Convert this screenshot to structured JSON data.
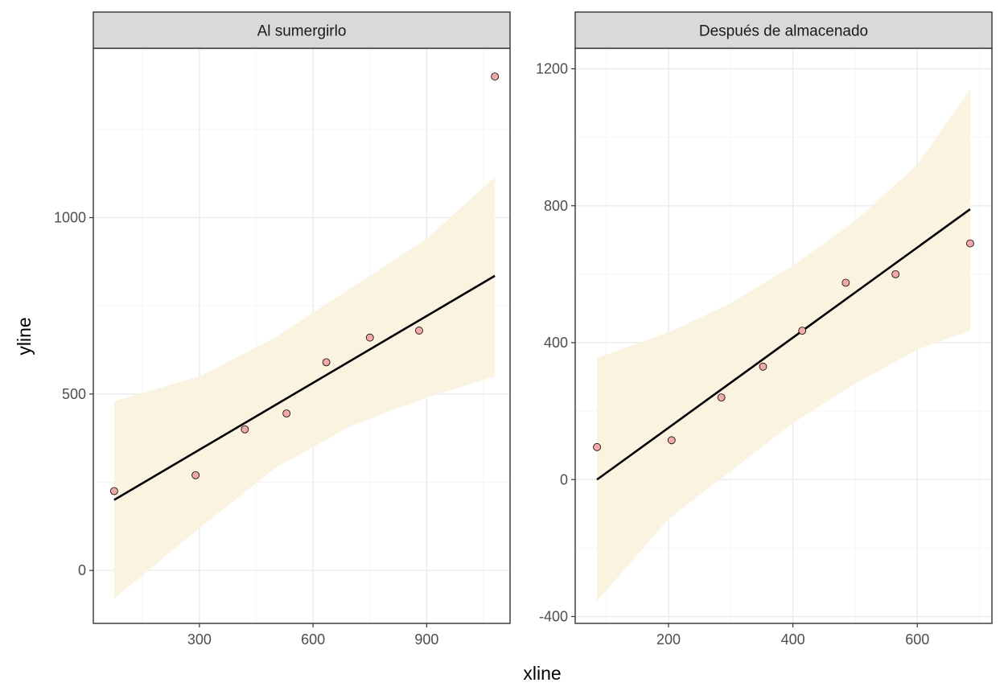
{
  "figure": {
    "xlabel": "xline",
    "ylabel": "yline"
  },
  "colors": {
    "point_fill": "#f4a7a7",
    "point_stroke": "#000000",
    "ribbon": "#faf3df",
    "line": "#000000",
    "strip_bg": "#d9d9d9",
    "grid_major": "#ebebeb",
    "grid_minor": "#f5f5f5",
    "panel_border": "#333333"
  },
  "chart_data": [
    {
      "type": "scatter",
      "title": "Al sumergirlo",
      "xlim": [
        20,
        1120
      ],
      "ylim": [
        -150,
        1480
      ],
      "x_ticks": [
        300,
        600,
        900
      ],
      "y_ticks": [
        0,
        500,
        1000
      ],
      "grid": true,
      "legend": "none",
      "points": [
        {
          "x": 75,
          "y": 225
        },
        {
          "x": 290,
          "y": 270
        },
        {
          "x": 420,
          "y": 400
        },
        {
          "x": 530,
          "y": 445
        },
        {
          "x": 635,
          "y": 590
        },
        {
          "x": 750,
          "y": 660
        },
        {
          "x": 880,
          "y": 680
        },
        {
          "x": 1080,
          "y": 1400
        }
      ],
      "fit": [
        {
          "x": 75,
          "y": 200
        },
        {
          "x": 1080,
          "y": 835
        }
      ],
      "ribbon": [
        {
          "x": 75,
          "lo": -80,
          "hi": 480
        },
        {
          "x": 300,
          "lo": 120,
          "hi": 550
        },
        {
          "x": 500,
          "lo": 290,
          "hi": 660
        },
        {
          "x": 700,
          "lo": 410,
          "hi": 800
        },
        {
          "x": 900,
          "lo": 490,
          "hi": 940
        },
        {
          "x": 1080,
          "lo": 550,
          "hi": 1115
        }
      ]
    },
    {
      "type": "scatter",
      "title": "Después de almacenado",
      "xlim": [
        50,
        720
      ],
      "ylim": [
        -420,
        1260
      ],
      "x_ticks": [
        200,
        400,
        600
      ],
      "y_ticks": [
        -400,
        0,
        400,
        800,
        1200
      ],
      "grid": true,
      "legend": "none",
      "points": [
        {
          "x": 85,
          "y": 95
        },
        {
          "x": 205,
          "y": 115
        },
        {
          "x": 285,
          "y": 240
        },
        {
          "x": 352,
          "y": 330
        },
        {
          "x": 415,
          "y": 435
        },
        {
          "x": 485,
          "y": 575
        },
        {
          "x": 565,
          "y": 600
        },
        {
          "x": 685,
          "y": 690
        }
      ],
      "fit": [
        {
          "x": 85,
          "y": 0
        },
        {
          "x": 685,
          "y": 790
        }
      ],
      "ribbon": [
        {
          "x": 85,
          "lo": -355,
          "hi": 355
        },
        {
          "x": 200,
          "lo": -115,
          "hi": 430
        },
        {
          "x": 300,
          "lo": 25,
          "hi": 515
        },
        {
          "x": 400,
          "lo": 165,
          "hi": 625
        },
        {
          "x": 500,
          "lo": 280,
          "hi": 755
        },
        {
          "x": 600,
          "lo": 380,
          "hi": 920
        },
        {
          "x": 685,
          "lo": 435,
          "hi": 1140
        }
      ]
    }
  ]
}
